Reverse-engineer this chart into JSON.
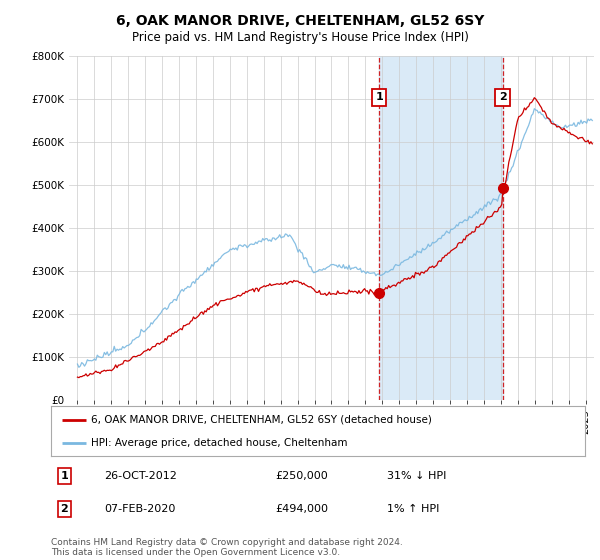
{
  "title": "6, OAK MANOR DRIVE, CHELTENHAM, GL52 6SY",
  "subtitle": "Price paid vs. HM Land Registry's House Price Index (HPI)",
  "hpi_label": "HPI: Average price, detached house, Cheltenham",
  "property_label": "6, OAK MANOR DRIVE, CHELTENHAM, GL52 6SY (detached house)",
  "hpi_color": "#7ab8e0",
  "property_color": "#cc0000",
  "vline_color": "#cc0000",
  "annotation1": {
    "x_year": 2012.82,
    "y_val": 250000,
    "label": "1",
    "date": "26-OCT-2012",
    "price": "£250,000",
    "change": "31% ↓ HPI"
  },
  "annotation2": {
    "x_year": 2020.1,
    "y_val": 494000,
    "label": "2",
    "date": "07-FEB-2020",
    "price": "£494,000",
    "change": "1% ↑ HPI"
  },
  "ylim": [
    0,
    800000
  ],
  "xlim_start": 1994.5,
  "xlim_end": 2025.5,
  "yticks": [
    0,
    100000,
    200000,
    300000,
    400000,
    500000,
    600000,
    700000,
    800000
  ],
  "ytick_labels": [
    "£0",
    "£100K",
    "£200K",
    "£300K",
    "£400K",
    "£500K",
    "£600K",
    "£700K",
    "£800K"
  ],
  "background_color": "#ffffff",
  "shade_color": "#daeaf7",
  "footer": "Contains HM Land Registry data © Crown copyright and database right 2024.\nThis data is licensed under the Open Government Licence v3.0."
}
